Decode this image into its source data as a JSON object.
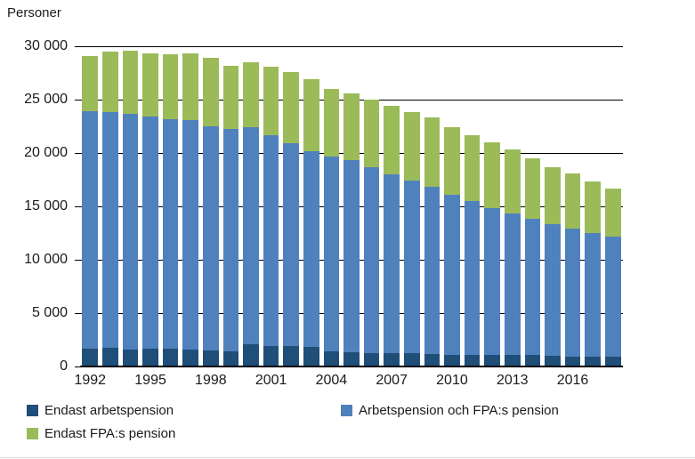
{
  "page": {
    "background": "#ffffff",
    "bottom_divider_color": "#d9d9d9",
    "text_color": "#1a1a1a",
    "gridline_color": "#000000"
  },
  "chart_data": {
    "type": "bar",
    "stacked": true,
    "title": "Personer",
    "xlabel": "",
    "ylabel": "Personer",
    "categories": [
      1992,
      1993,
      1994,
      1995,
      1996,
      1997,
      1998,
      1999,
      2000,
      2001,
      2002,
      2003,
      2004,
      2005,
      2006,
      2007,
      2008,
      2009,
      2010,
      2011,
      2012,
      2013,
      2014,
      2015,
      2016,
      2017,
      2018
    ],
    "series": [
      {
        "name": "Endast arbetspension",
        "color": "#1f4e79",
        "values": [
          1700,
          1750,
          1600,
          1650,
          1650,
          1600,
          1500,
          1450,
          2100,
          1950,
          1900,
          1800,
          1400,
          1350,
          1250,
          1250,
          1250,
          1200,
          1100,
          1100,
          1100,
          1100,
          1100,
          1000,
          950,
          900,
          900
        ]
      },
      {
        "name": "Arbetspension och FPA:s pension",
        "color": "#4f81bd",
        "values": [
          22200,
          22050,
          22050,
          21800,
          21500,
          21450,
          21000,
          20800,
          20350,
          19750,
          19050,
          18350,
          18250,
          17950,
          17400,
          16750,
          16150,
          15600,
          15000,
          14400,
          13750,
          13250,
          12750,
          12350,
          11950,
          11600,
          11300
        ]
      },
      {
        "name": "Endast FPA:s pension",
        "color": "#9bbb59",
        "values": [
          5200,
          5700,
          5950,
          5900,
          6100,
          6300,
          6400,
          5950,
          6050,
          6350,
          6600,
          6800,
          6350,
          6250,
          6350,
          6400,
          6400,
          6500,
          6300,
          6200,
          6150,
          5950,
          5650,
          5300,
          5150,
          4800,
          4500
        ]
      }
    ],
    "ylim": [
      0,
      30000
    ],
    "ytick_step": 5000,
    "ytick_labels": [
      "0",
      "5 000",
      "10 000",
      "15 000",
      "20 000",
      "25 000",
      "30 000"
    ],
    "xtick_labels": [
      "1992",
      "1995",
      "1998",
      "2001",
      "2004",
      "2007",
      "2010",
      "2013",
      "2016"
    ],
    "xtick_every": 3,
    "grid": "horizontal",
    "legend_position": "bottom"
  },
  "legend": {
    "row1_left_label": "Endast arbetspension",
    "row1_right_label": "Arbetspension och FPA:s pension",
    "row2_left_label": "Endast FPA:s pension"
  }
}
